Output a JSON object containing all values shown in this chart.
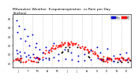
{
  "title": "Milwaukee Weather  Evapotranspiration  vs Rain per Day\n(Inches)",
  "title_fontsize": 3.2,
  "background_color": "#ffffff",
  "et_color": "#ff0000",
  "rain_color": "#0000cc",
  "diff_color": "#000000",
  "legend_et_label": "ET",
  "legend_rain_label": "Rain",
  "ylim": [
    -0.05,
    0.55
  ],
  "xlim": [
    0,
    365
  ],
  "grid_color": "#cccccc",
  "marker_size": 2.0
}
